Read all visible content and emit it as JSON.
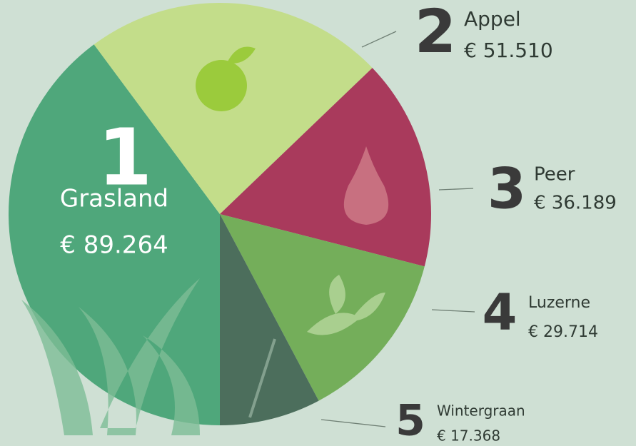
{
  "chart_data": {
    "type": "pie",
    "categories": [
      "Grasland",
      "Appel",
      "Peer",
      "Luzerne",
      "Wintergraan"
    ],
    "values": [
      89264,
      51510,
      36189,
      29714,
      17368
    ],
    "value_labels": [
      "€ 89.264",
      "€ 51.510",
      "€ 36.189",
      "€ 29.714",
      "€ 17.368"
    ],
    "ranks": [
      "1",
      "2",
      "3",
      "4",
      "5"
    ],
    "colors": [
      "#4fa77b",
      "#c3dd8a",
      "#a93a5c",
      "#74ae5a",
      "#4c6e5c"
    ]
  }
}
